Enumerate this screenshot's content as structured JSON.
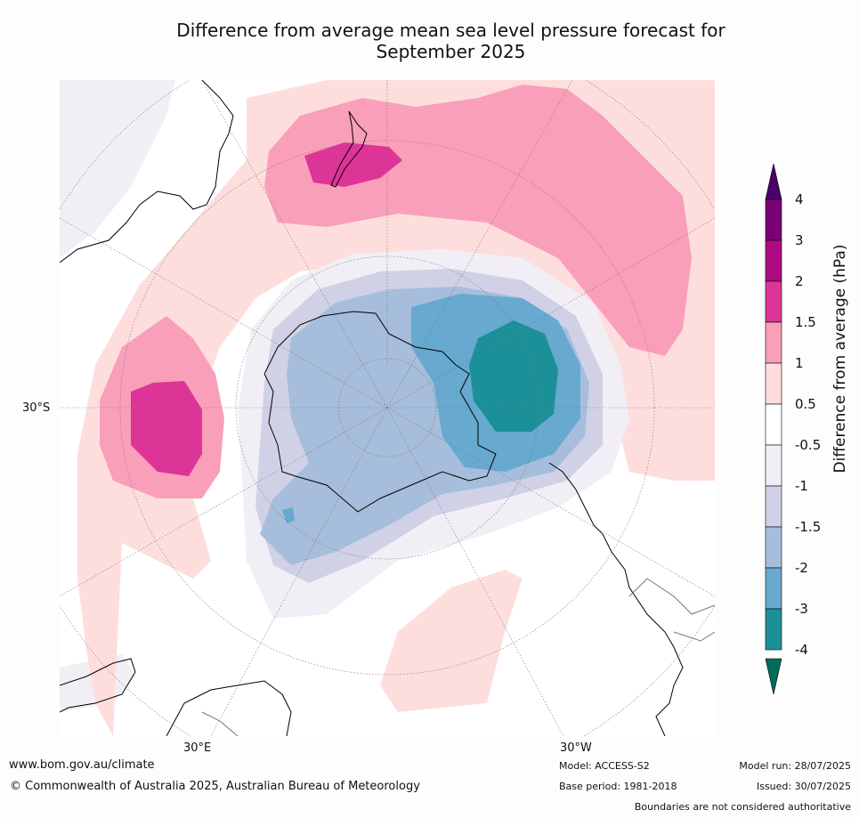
{
  "title_line1": "Difference from average mean sea level pressure forecast for",
  "title_line2": "September 2025",
  "map": {
    "lat_label": "30°S",
    "lon_label_left": "30°E",
    "lon_label_right": "30°W",
    "colors": {
      "land_stipple": "#f1eff5",
      "coast": "#000000",
      "graticule": "#777777"
    }
  },
  "colorbar": {
    "label": "Difference from average (hPa)",
    "ticks": [
      "4",
      "3",
      "2",
      "1.5",
      "1",
      "0.5",
      "-0.5",
      "-1",
      "-1.5",
      "-2",
      "-3",
      "-4"
    ],
    "bins": [
      {
        "from": "3",
        "to": "4",
        "color": "#7a0077"
      },
      {
        "from": "2",
        "to": "3",
        "color": "#ae0a82"
      },
      {
        "from": "1.5",
        "to": "2",
        "color": "#dd3497"
      },
      {
        "from": "1",
        "to": "1.5",
        "color": "#f99fb9"
      },
      {
        "from": "0.5",
        "to": "1",
        "color": "#fddedd"
      },
      {
        "from": "-0.5",
        "to": "0.5",
        "color": "#ffffff"
      },
      {
        "from": "-1",
        "to": "-0.5",
        "color": "#f1eff5"
      },
      {
        "from": "-1.5",
        "to": "-1",
        "color": "#d0d1e6"
      },
      {
        "from": "-2",
        "to": "-1.5",
        "color": "#a6bddb"
      },
      {
        "from": "-3",
        "to": "-2",
        "color": "#67a9cf"
      },
      {
        "from": "-4",
        "to": "-3",
        "color": "#1c9099"
      }
    ],
    "over_color": "#4a006a",
    "under_color": "#016c59"
  },
  "footer": {
    "url": "www.bom.gov.au/climate",
    "copyright": "© Commonwealth of Australia 2025, Australian Bureau of Meteorology",
    "model": "Model: ACCESS-S2",
    "base_period": "Base period: 1981-2018",
    "model_run": "Model run: 28/07/2025",
    "issued": "Issued: 30/07/2025",
    "disclaimer": "Boundaries are not considered authoritative"
  }
}
